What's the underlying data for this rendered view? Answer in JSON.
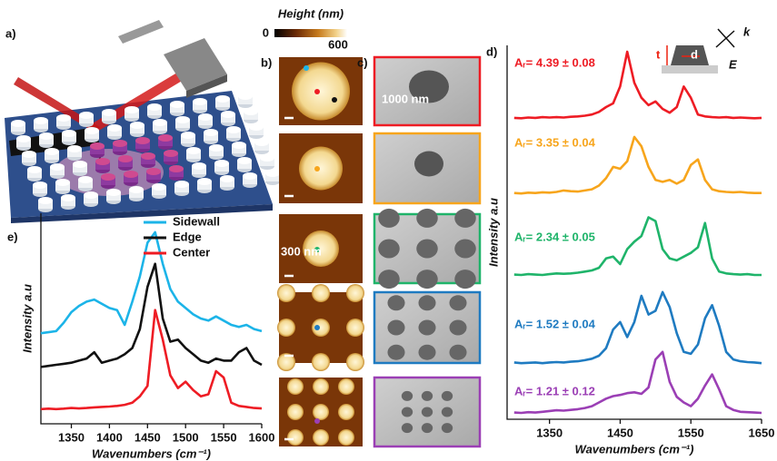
{
  "figure": {
    "panel_labels": [
      "a)",
      "b)",
      "c)",
      "d)",
      "e)"
    ],
    "colorbar": {
      "title": "Height (nm)",
      "min_label": "0",
      "max_label": "600"
    },
    "scale_bars": [
      "1000 nm",
      "300 nm"
    ],
    "inset_labels": {
      "t": "t",
      "d": "d",
      "k": "k",
      "E": "E"
    }
  },
  "chart_data": [
    {
      "type": "line",
      "xlabel": "Wavenumbers (cm⁻¹)",
      "ylabel": "Intensity a.u",
      "legend": "upper right",
      "xlim": [
        1310,
        1600
      ],
      "ylim": [
        0,
        10
      ],
      "xticks": [
        1350,
        1400,
        1450,
        1500,
        1550,
        1600
      ],
      "x": [
        1310,
        1320,
        1330,
        1340,
        1350,
        1360,
        1370,
        1380,
        1390,
        1400,
        1410,
        1420,
        1430,
        1440,
        1450,
        1460,
        1470,
        1480,
        1490,
        1500,
        1510,
        1520,
        1530,
        1540,
        1550,
        1560,
        1570,
        1580,
        1590,
        1600
      ],
      "series": [
        {
          "name": "Sidewall",
          "color": "#1cb4e8",
          "values": [
            4.3,
            4.35,
            4.4,
            4.8,
            5.3,
            5.6,
            5.8,
            5.9,
            5.7,
            5.5,
            5.4,
            4.7,
            5.8,
            7.0,
            8.6,
            9.1,
            7.6,
            6.4,
            5.8,
            5.5,
            5.2,
            5.0,
            4.9,
            5.1,
            4.9,
            4.7,
            4.6,
            4.7,
            4.5,
            4.4
          ]
        },
        {
          "name": "Edge",
          "color": "#111111",
          "values": [
            2.7,
            2.75,
            2.8,
            2.85,
            2.9,
            3.0,
            3.1,
            3.4,
            2.9,
            3.0,
            3.1,
            3.3,
            3.6,
            4.5,
            6.5,
            7.6,
            5.0,
            3.9,
            4.0,
            3.6,
            3.3,
            3.0,
            2.9,
            3.1,
            3.0,
            3.0,
            3.4,
            3.6,
            3.0,
            2.8
          ]
        },
        {
          "name": "Center",
          "color": "#ee1c24",
          "values": [
            0.7,
            0.72,
            0.7,
            0.72,
            0.75,
            0.73,
            0.75,
            0.78,
            0.8,
            0.82,
            0.85,
            0.9,
            1.0,
            1.3,
            1.8,
            5.4,
            4.0,
            2.3,
            1.7,
            2.0,
            1.6,
            1.3,
            1.4,
            2.5,
            2.2,
            1.0,
            0.85,
            0.8,
            0.75,
            0.73
          ]
        }
      ]
    },
    {
      "type": "line",
      "xlabel": "Wavenumbers (cm⁻¹)",
      "ylabel": "Intensity a.u",
      "xlim": [
        1290,
        1650
      ],
      "ylim": [
        0,
        10
      ],
      "xticks": [
        1350,
        1450,
        1550,
        1650
      ],
      "x": [
        1300,
        1310,
        1320,
        1330,
        1340,
        1350,
        1360,
        1370,
        1380,
        1390,
        1400,
        1410,
        1420,
        1430,
        1440,
        1450,
        1460,
        1470,
        1480,
        1490,
        1500,
        1510,
        1520,
        1530,
        1540,
        1550,
        1560,
        1570,
        1580,
        1590,
        1600,
        1610,
        1620,
        1630,
        1640,
        1650
      ],
      "series": [
        {
          "name": "Aᵣ= 4.39 ± 0.08",
          "color": "#ee1c24",
          "values": [
            8.06,
            8.05,
            8.07,
            8.06,
            8.08,
            8.07,
            8.08,
            8.07,
            8.09,
            8.1,
            8.12,
            8.15,
            8.22,
            8.35,
            8.45,
            8.9,
            9.83,
            9.0,
            8.6,
            8.4,
            8.5,
            8.3,
            8.2,
            8.35,
            8.9,
            8.6,
            8.15,
            8.1,
            8.08,
            8.07,
            8.08,
            8.06,
            8.07,
            8.06,
            8.05,
            8.06
          ]
        },
        {
          "name": "Aᵣ= 3.35 ± 0.04",
          "color": "#f7a51c",
          "values": [
            6.05,
            6.04,
            6.06,
            6.05,
            6.07,
            6.06,
            6.08,
            6.12,
            6.1,
            6.09,
            6.12,
            6.15,
            6.25,
            6.45,
            6.75,
            6.7,
            6.9,
            7.55,
            7.3,
            6.75,
            6.4,
            6.35,
            6.4,
            6.3,
            6.4,
            6.8,
            6.95,
            6.4,
            6.15,
            6.1,
            6.08,
            6.07,
            6.08,
            6.06,
            6.05,
            6.05
          ]
        },
        {
          "name": "Aᵣ= 2.34 ± 0.05",
          "color": "#1fb46a",
          "values": [
            3.87,
            3.86,
            3.88,
            3.87,
            3.86,
            3.88,
            3.9,
            3.89,
            3.9,
            3.92,
            3.95,
            3.98,
            4.05,
            4.3,
            4.35,
            4.15,
            4.55,
            4.75,
            4.9,
            5.4,
            5.3,
            4.55,
            4.3,
            4.25,
            4.35,
            4.45,
            4.6,
            5.25,
            4.3,
            3.95,
            3.9,
            3.88,
            3.87,
            3.88,
            3.86,
            3.86
          ]
        },
        {
          "name": "Aᵣ= 1.52 ± 0.04",
          "color": "#1f7bc1",
          "values": [
            1.52,
            1.5,
            1.51,
            1.52,
            1.5,
            1.52,
            1.53,
            1.52,
            1.54,
            1.55,
            1.58,
            1.62,
            1.7,
            1.9,
            2.4,
            2.6,
            2.2,
            2.6,
            3.3,
            2.8,
            2.9,
            3.4,
            3.0,
            2.3,
            1.8,
            1.75,
            2.0,
            2.7,
            3.05,
            2.5,
            1.8,
            1.6,
            1.55,
            1.53,
            1.52,
            1.5
          ]
        },
        {
          "name": "Aᵣ= 1.21 ± 0.12",
          "color": "#9b3fb5",
          "values": [
            0.18,
            0.17,
            0.19,
            0.18,
            0.2,
            0.22,
            0.24,
            0.23,
            0.25,
            0.27,
            0.3,
            0.35,
            0.45,
            0.55,
            0.62,
            0.65,
            0.7,
            0.72,
            0.68,
            0.85,
            1.6,
            1.8,
            1.0,
            0.6,
            0.45,
            0.35,
            0.55,
            0.9,
            1.2,
            0.8,
            0.35,
            0.25,
            0.2,
            0.19,
            0.18,
            0.17
          ]
        }
      ]
    }
  ]
}
